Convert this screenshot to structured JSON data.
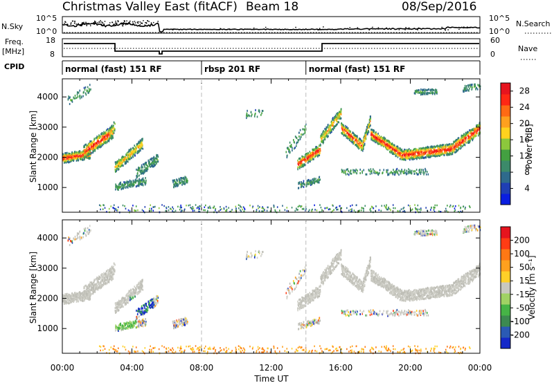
{
  "header": {
    "title": "Christmas Valley East (fitACF)",
    "beam": "Beam 18",
    "date": "08/Sep/2016"
  },
  "left_labels": {
    "nsky": "N.Sky",
    "freq_line1": "Freq.",
    "freq_line2": "[MHz]",
    "cpid": "CPID"
  },
  "right_labels": {
    "nsearch": "N.Search",
    "nave": "Nave"
  },
  "noise_axis": {
    "left_ticks": [
      "10^5",
      "10^0"
    ],
    "right_ticks": [
      "10^5",
      "10^0"
    ]
  },
  "freq_axis": {
    "left_ticks": [
      "18",
      "8"
    ],
    "right_ticks": [
      "60",
      "0"
    ]
  },
  "modes": [
    {
      "label": "normal (fast) 151 RF",
      "start_hour": 0,
      "end_hour": 8
    },
    {
      "label": "rbsp 201 RF",
      "start_hour": 8,
      "end_hour": 14
    },
    {
      "label": "normal (fast) 151 RF",
      "start_hour": 14,
      "end_hour": 24
    }
  ],
  "chart_data": [
    {
      "type": "heatmap",
      "panel": "power",
      "ylabel": "Slant Range [km]",
      "xlabel": "",
      "ylim": [
        180,
        4600
      ],
      "xlim_hours": [
        0,
        24
      ],
      "y_ticks": [
        1000,
        2000,
        3000,
        4000
      ],
      "colorbar": {
        "label": "Power [dB]",
        "ticks": [
          "4",
          "8",
          "12",
          "16",
          "20",
          "24",
          "28"
        ],
        "range": [
          0,
          30
        ],
        "colors": [
          "#0a1ee0",
          "#1f3fb4",
          "#2e6a8c",
          "#3c8a6a",
          "#43a041",
          "#8cc83c",
          "#ffd21e",
          "#ffa01e",
          "#ff6a14",
          "#ff2814",
          "#e6141e"
        ]
      }
    },
    {
      "type": "heatmap",
      "panel": "velocity",
      "ylabel": "Slant Range [km]",
      "xlabel": "Time UT",
      "ylim": [
        180,
        4600
      ],
      "xlim_hours": [
        0,
        24
      ],
      "y_ticks": [
        1000,
        2000,
        3000,
        4000
      ],
      "x_ticks": [
        "00:00",
        "04:00",
        "08:00",
        "12:00",
        "16:00",
        "20:00",
        "00:00"
      ],
      "colorbar": {
        "label": "Velocity [m s⁻¹]",
        "ticks": [
          "200",
          "100",
          "50",
          "15",
          "-15",
          "-50",
          "-100",
          "-200"
        ],
        "range": [
          -250,
          250
        ],
        "colors": [
          "#1428c8",
          "#2a5ab4",
          "#3c8a50",
          "#46b446",
          "#a0d264",
          "#c8c8c0",
          "#ffd028",
          "#ffa01e",
          "#ff7814",
          "#ff3c14",
          "#e6141e"
        ]
      }
    }
  ]
}
